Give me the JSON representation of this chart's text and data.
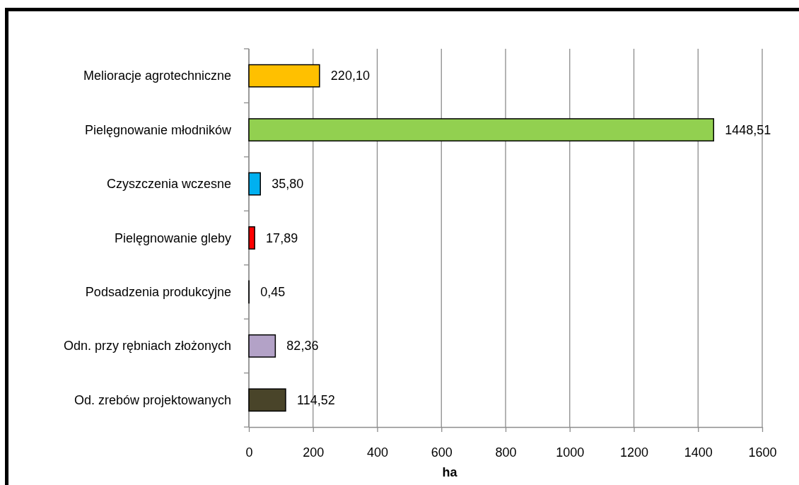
{
  "chart_data": {
    "type": "bar",
    "orientation": "horizontal",
    "categories": [
      "Melioracje agrotechniczne",
      "Pielęgnowanie młodników",
      "Czyszczenia wczesne",
      "Pielęgnowanie gleby",
      "Podsadzenia produkcyjne",
      "Odn. przy rębniach złożonych",
      "Od. zrebów projektowanych"
    ],
    "values": [
      220.1,
      1448.51,
      35.8,
      17.89,
      0.45,
      82.36,
      114.52
    ],
    "colors": [
      "#ffc000",
      "#92d050",
      "#00b0f0",
      "#ff0000",
      "#4f81bd",
      "#b3a2c7",
      "#494429"
    ],
    "value_labels": [
      "220,10",
      "1448,51",
      "35,80",
      "17,89",
      "0,45",
      "82,36",
      "114,52"
    ],
    "xlim": [
      0,
      1600
    ],
    "xticks": [
      0,
      200,
      400,
      600,
      800,
      1000,
      1200,
      1400,
      1600
    ],
    "xlabel": "ha",
    "grid": "x"
  }
}
